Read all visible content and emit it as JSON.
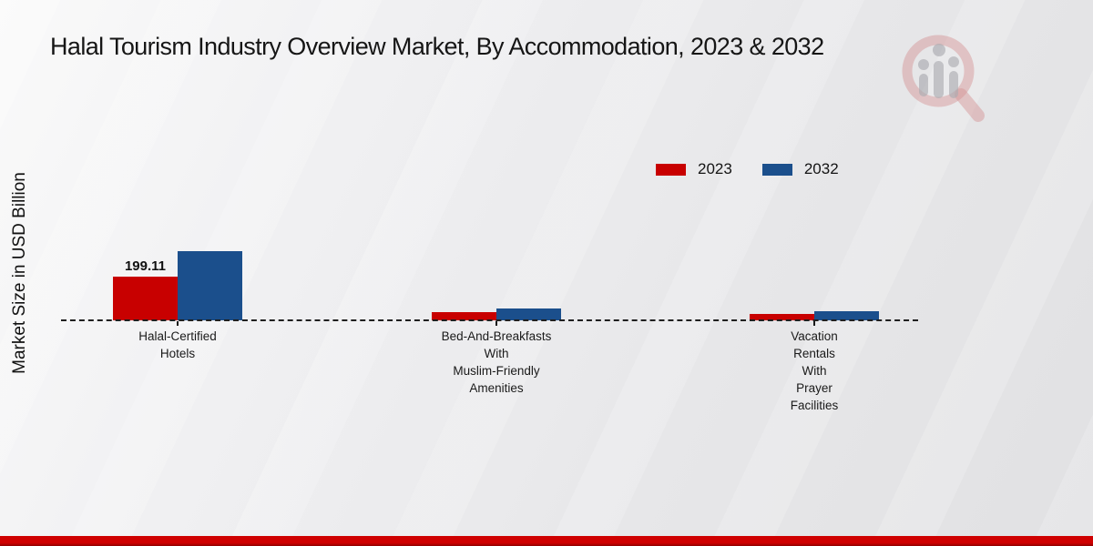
{
  "page": {
    "background_top": "#fafafa",
    "background_bottom": "#e1e1e3",
    "accent_strip_color": "#cf0000",
    "watermark_icon": "magnifier-bar-chart-logo"
  },
  "chart_data": {
    "type": "bar",
    "title": "Halal Tourism Industry Overview Market, By Accommodation, 2023 & 2032",
    "xlabel": "",
    "ylabel": "Market Size in USD Billion",
    "categories": [
      "Halal-Certified Hotels",
      "Bed-And-Breakfasts With Muslim-Friendly Amenities",
      "Vacation Rentals With Prayer Facilities"
    ],
    "category_label_lines": [
      [
        "Halal-Certified",
        "Hotels"
      ],
      [
        "Bed-And-Breakfasts",
        "With",
        "Muslim-Friendly",
        "Amenities"
      ],
      [
        "Vacation",
        "Rentals",
        "With",
        "Prayer",
        "Facilities"
      ]
    ],
    "series": [
      {
        "name": "2023",
        "color": "#c80000",
        "values": [
          199.11,
          37,
          29
        ]
      },
      {
        "name": "2032",
        "color": "#1b4f8c",
        "values": [
          315.3,
          54,
          41.5
        ]
      }
    ],
    "value_labels": [
      {
        "series_index": 0,
        "category_index": 0,
        "text": "199.11"
      }
    ],
    "legend_position": "upper-right-inside",
    "grid": false,
    "baseline_style": "dashed",
    "ylim": [
      0,
      340
    ]
  }
}
